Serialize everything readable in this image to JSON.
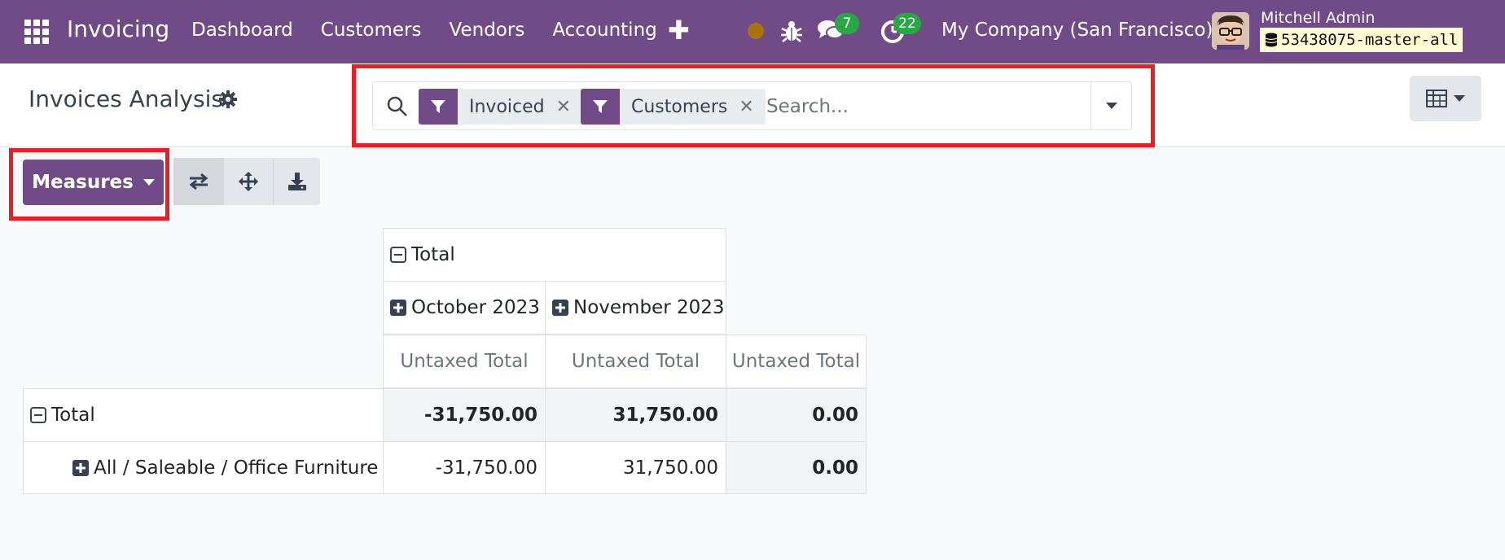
{
  "navbar": {
    "app_name": "Invoicing",
    "menu": [
      "Dashboard",
      "Customers",
      "Vendors",
      "Accounting"
    ],
    "messages_count": "7",
    "activities_count": "22",
    "company": "My Company (San Francisco)",
    "user_name": "Mitchell Admin",
    "database": "53438075-master-all",
    "colors": {
      "brand": "#714b88",
      "badge": "#28a745"
    }
  },
  "control_panel": {
    "title": "Invoices Analysis",
    "search": {
      "facets": [
        {
          "label": "Invoiced"
        },
        {
          "label": "Customers"
        }
      ],
      "placeholder": "Search..."
    }
  },
  "toolbar": {
    "measures_label": "Measures"
  },
  "pivot": {
    "column_header_total": "Total",
    "column_groups": [
      "October 2023",
      "November 2023"
    ],
    "measure_label": "Untaxed Total",
    "rows": [
      {
        "label": "Total",
        "values": [
          "-31,750.00",
          "31,750.00",
          "0.00"
        ]
      },
      {
        "label": "All / Saleable / Office Furniture",
        "values": [
          "-31,750.00",
          "31,750.00",
          "0.00"
        ]
      }
    ]
  }
}
